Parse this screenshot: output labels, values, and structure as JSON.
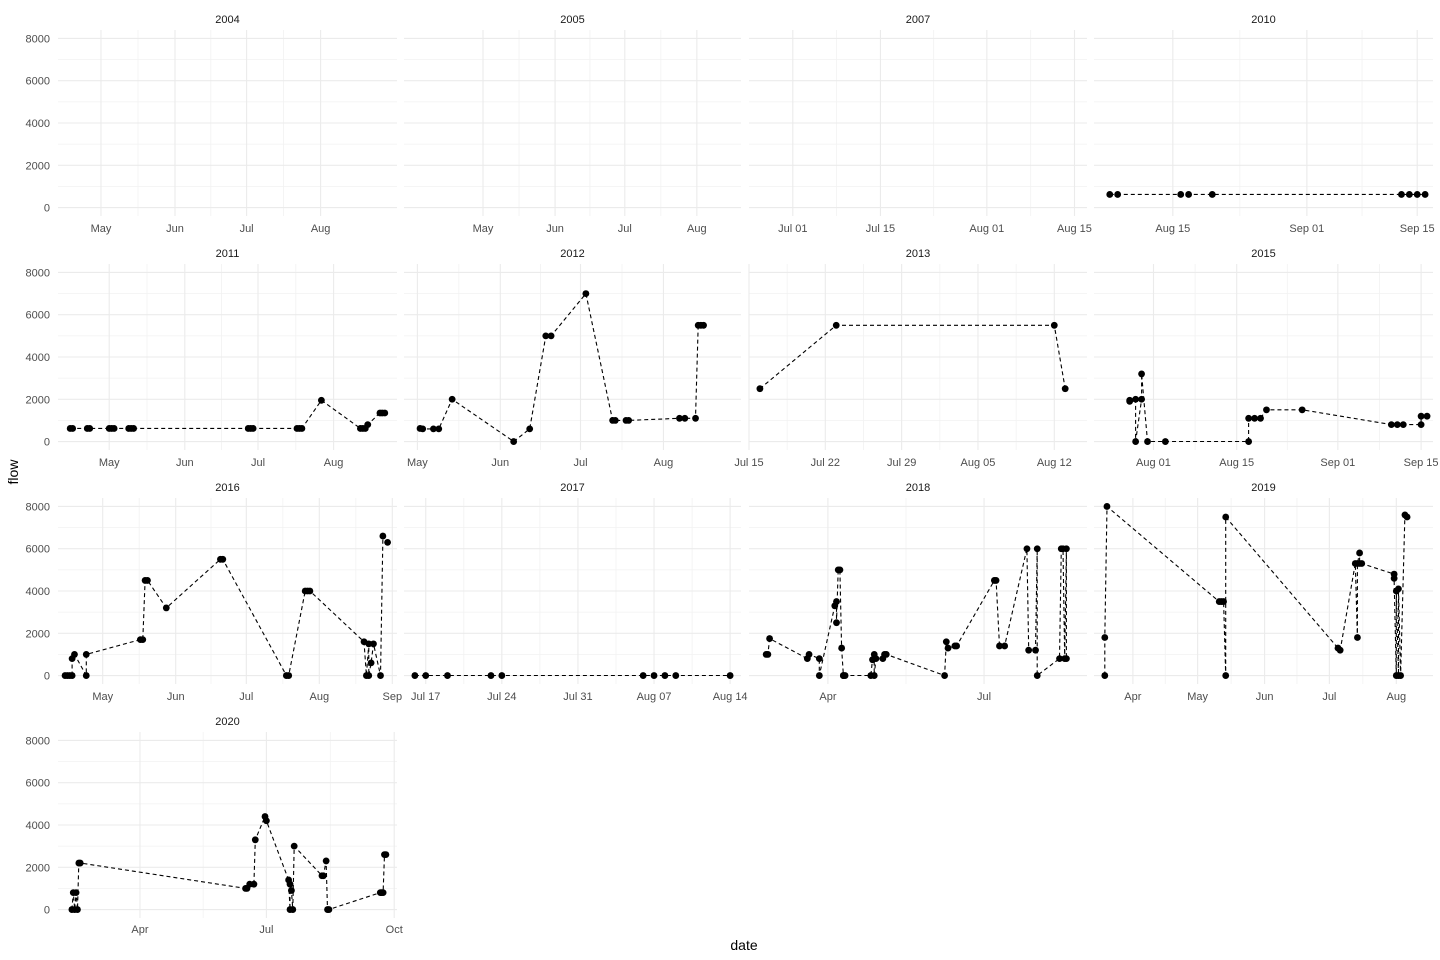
{
  "chart_data": {
    "type": "line",
    "xlabel": "date",
    "ylabel": "flow",
    "ylim": [
      -400,
      8400
    ],
    "y_ticks": [
      0,
      2000,
      4000,
      6000,
      8000
    ],
    "y_tick_labels": [
      "0",
      "2000",
      "4000",
      "6000",
      "8000"
    ],
    "grid": true,
    "line_style": "dashed",
    "marker": "point",
    "panels": [
      {
        "year": "2004",
        "xlim": [
          "2004-04-13",
          "2004-09-02"
        ],
        "x_ticks": [
          "2004-05-01",
          "2004-06-01",
          "2004-07-01",
          "2004-08-01"
        ],
        "x_tick_labels": [
          "May",
          "Jun",
          "Jul",
          "Aug"
        ],
        "x": [],
        "y": []
      },
      {
        "year": "2005",
        "xlim": [
          "2005-03-28",
          "2005-08-20"
        ],
        "x_ticks": [
          "2005-05-01",
          "2005-06-01",
          "2005-07-01",
          "2005-08-01"
        ],
        "x_tick_labels": [
          "May",
          "Jun",
          "Jul",
          "Aug"
        ],
        "x": [],
        "y": []
      },
      {
        "year": "2007",
        "xlim": [
          "2007-06-24",
          "2007-08-17"
        ],
        "x_ticks": [
          "2007-07-01",
          "2007-07-15",
          "2007-08-01",
          "2007-08-15"
        ],
        "x_tick_labels": [
          "Jul 01",
          "Jul 15",
          "Aug 01",
          "Aug 15"
        ],
        "x": [],
        "y": []
      },
      {
        "year": "2010",
        "xlim": [
          "2010-08-05",
          "2010-09-17"
        ],
        "x_ticks": [
          "2010-08-15",
          "2010-09-01",
          "2010-09-15"
        ],
        "x_tick_labels": [
          "Aug 15",
          "Sep 01",
          "Sep 15"
        ],
        "x": [
          "2010-08-07",
          "2010-08-08",
          "2010-08-16",
          "2010-08-17",
          "2010-08-20",
          "2010-09-13",
          "2010-09-14",
          "2010-09-15",
          "2010-09-16"
        ],
        "y": [
          620,
          620,
          620,
          620,
          620,
          620,
          620,
          620,
          620
        ]
      },
      {
        "year": "2011",
        "xlim": [
          "2011-04-10",
          "2011-08-27"
        ],
        "x_ticks": [
          "2011-05-01",
          "2011-06-01",
          "2011-07-01",
          "2011-08-01"
        ],
        "x_tick_labels": [
          "May",
          "Jun",
          "Jul",
          "Aug"
        ],
        "x": [
          "2011-04-15",
          "2011-04-16",
          "2011-04-22",
          "2011-04-23",
          "2011-05-01",
          "2011-05-02",
          "2011-05-03",
          "2011-05-09",
          "2011-05-10",
          "2011-05-11",
          "2011-06-27",
          "2011-06-28",
          "2011-06-29",
          "2011-07-17",
          "2011-07-18",
          "2011-07-19",
          "2011-07-27",
          "2011-08-12",
          "2011-08-13",
          "2011-08-14",
          "2011-08-15",
          "2011-08-20",
          "2011-08-21",
          "2011-08-22"
        ],
        "y": [
          620,
          620,
          620,
          620,
          620,
          620,
          620,
          620,
          620,
          620,
          620,
          620,
          620,
          620,
          620,
          620,
          1950,
          620,
          620,
          620,
          800,
          1350,
          1350,
          1350
        ]
      },
      {
        "year": "2012",
        "xlim": [
          "2012-04-26",
          "2012-08-30"
        ],
        "x_ticks": [
          "2012-05-01",
          "2012-06-01",
          "2012-07-01",
          "2012-08-01"
        ],
        "x_tick_labels": [
          "May",
          "Jun",
          "Jul",
          "Aug"
        ],
        "x": [
          "2012-05-02",
          "2012-05-03",
          "2012-05-07",
          "2012-05-09",
          "2012-05-14",
          "2012-06-06",
          "2012-06-12",
          "2012-06-18",
          "2012-06-20",
          "2012-07-03",
          "2012-07-13",
          "2012-07-14",
          "2012-07-18",
          "2012-07-19",
          "2012-08-07",
          "2012-08-09",
          "2012-08-13",
          "2012-08-14",
          "2012-08-15",
          "2012-08-16"
        ],
        "y": [
          620,
          600,
          600,
          600,
          2000,
          0,
          600,
          5000,
          5000,
          7000,
          1000,
          1000,
          1000,
          1000,
          1100,
          1100,
          1100,
          5500,
          5500,
          5500
        ]
      },
      {
        "year": "2013",
        "xlim": [
          "2013-07-15",
          "2013-08-15"
        ],
        "x_ticks": [
          "2013-07-15",
          "2013-07-22",
          "2013-07-29",
          "2013-08-05",
          "2013-08-12"
        ],
        "x_tick_labels": [
          "Jul 15",
          "Jul 22",
          "Jul 29",
          "Aug 05",
          "Aug 12"
        ],
        "x": [
          "2013-07-16",
          "2013-07-23",
          "2013-08-12",
          "2013-08-13"
        ],
        "y": [
          2500,
          5500,
          5500,
          2500
        ]
      },
      {
        "year": "2015",
        "xlim": [
          "2015-07-22",
          "2015-09-17"
        ],
        "x_ticks": [
          "2015-08-01",
          "2015-08-15",
          "2015-09-01",
          "2015-09-15"
        ],
        "x_tick_labels": [
          "Aug 01",
          "Aug 15",
          "Sep 01",
          "Sep 15"
        ],
        "x": [
          "2015-07-28",
          "2015-07-28",
          "2015-07-29",
          "2015-07-29",
          "2015-07-30",
          "2015-07-30",
          "2015-07-31",
          "2015-08-03",
          "2015-08-17",
          "2015-08-17",
          "2015-08-18",
          "2015-08-19",
          "2015-08-20",
          "2015-08-26",
          "2015-09-10",
          "2015-09-11",
          "2015-09-12",
          "2015-09-15",
          "2015-09-15",
          "2015-09-16"
        ],
        "y": [
          1950,
          1900,
          2000,
          0,
          2000,
          3200,
          0,
          0,
          0,
          1100,
          1100,
          1100,
          1500,
          1500,
          800,
          800,
          800,
          800,
          1200,
          1200
        ]
      },
      {
        "year": "2016",
        "xlim": [
          "2016-04-12",
          "2016-09-03"
        ],
        "x_ticks": [
          "2016-05-01",
          "2016-06-01",
          "2016-07-01",
          "2016-08-01",
          "2016-09-01"
        ],
        "x_tick_labels": [
          "May",
          "Jun",
          "Jul",
          "Aug",
          "Sep"
        ],
        "x": [
          "2016-04-15",
          "2016-04-16",
          "2016-04-17",
          "2016-04-18",
          "2016-04-18",
          "2016-04-19",
          "2016-04-24",
          "2016-04-24",
          "2016-05-17",
          "2016-05-18",
          "2016-05-19",
          "2016-05-20",
          "2016-05-28",
          "2016-06-20",
          "2016-06-21",
          "2016-07-18",
          "2016-07-19",
          "2016-07-26",
          "2016-07-27",
          "2016-07-28",
          "2016-08-20",
          "2016-08-21",
          "2016-08-22",
          "2016-08-22",
          "2016-08-23",
          "2016-08-24",
          "2016-08-27",
          "2016-08-28",
          "2016-08-30"
        ],
        "y": [
          0,
          0,
          0,
          0,
          800,
          1000,
          0,
          1000,
          1700,
          1700,
          4500,
          4500,
          3200,
          5500,
          5500,
          0,
          0,
          4000,
          4000,
          4000,
          1600,
          0,
          1500,
          0,
          600,
          1500,
          0,
          6600,
          6300
        ]
      },
      {
        "year": "2017",
        "xlim": [
          "2017-07-15",
          "2017-08-15"
        ],
        "x_ticks": [
          "2017-07-17",
          "2017-07-24",
          "2017-07-31",
          "2017-08-07",
          "2017-08-14"
        ],
        "x_tick_labels": [
          "Jul 17",
          "Jul 24",
          "Jul 31",
          "Aug 07",
          "Aug 14"
        ],
        "x": [
          "2017-07-16",
          "2017-07-17",
          "2017-07-19",
          "2017-07-23",
          "2017-07-24",
          "2017-08-06",
          "2017-08-07",
          "2017-08-08",
          "2017-08-09",
          "2017-08-14"
        ],
        "y": [
          0,
          0,
          0,
          0,
          0,
          0,
          0,
          0,
          0,
          0
        ]
      },
      {
        "year": "2018",
        "xlim": [
          "2018-02-14",
          "2018-08-30"
        ],
        "x_ticks": [
          "2018-04-01",
          "2018-07-01"
        ],
        "x_tick_labels": [
          "Apr",
          "Jul"
        ],
        "x": [
          "2018-02-24",
          "2018-02-25",
          "2018-02-26",
          "2018-03-20",
          "2018-03-21",
          "2018-03-27",
          "2018-03-27",
          "2018-04-05",
          "2018-04-06",
          "2018-04-06",
          "2018-04-07",
          "2018-04-08",
          "2018-04-09",
          "2018-04-10",
          "2018-04-10",
          "2018-04-11",
          "2018-04-26",
          "2018-04-27",
          "2018-04-28",
          "2018-04-28",
          "2018-04-29",
          "2018-05-03",
          "2018-05-04",
          "2018-05-05",
          "2018-06-08",
          "2018-06-09",
          "2018-06-10",
          "2018-06-14",
          "2018-06-15",
          "2018-07-07",
          "2018-07-08",
          "2018-07-10",
          "2018-07-13",
          "2018-07-26",
          "2018-07-27",
          "2018-07-31",
          "2018-08-01",
          "2018-08-01",
          "2018-08-14",
          "2018-08-15",
          "2018-08-16",
          "2018-08-17",
          "2018-08-18",
          "2018-08-18"
        ],
        "y": [
          1000,
          1000,
          1750,
          800,
          1000,
          800,
          0,
          3300,
          3500,
          2500,
          5000,
          5000,
          1300,
          0,
          0,
          0,
          0,
          750,
          1000,
          0,
          800,
          800,
          1000,
          1000,
          0,
          1600,
          1300,
          1400,
          1400,
          4500,
          4500,
          1400,
          1400,
          6000,
          1200,
          1200,
          6000,
          0,
          800,
          6000,
          6000,
          800,
          6000,
          800
        ]
      },
      {
        "year": "2019",
        "xlim": [
          "2019-03-14",
          "2019-08-18"
        ],
        "x_ticks": [
          "2019-04-01",
          "2019-05-01",
          "2019-06-01",
          "2019-07-01",
          "2019-08-01"
        ],
        "x_tick_labels": [
          "Apr",
          "May",
          "Jun",
          "Jul",
          "Aug"
        ],
        "x": [
          "2019-03-19",
          "2019-03-19",
          "2019-03-20",
          "2019-05-11",
          "2019-05-12",
          "2019-05-13",
          "2019-05-14",
          "2019-05-14",
          "2019-07-05",
          "2019-07-06",
          "2019-07-13",
          "2019-07-14",
          "2019-07-14",
          "2019-07-15",
          "2019-07-15",
          "2019-07-16",
          "2019-07-31",
          "2019-07-31",
          "2019-08-01",
          "2019-08-01",
          "2019-08-02",
          "2019-08-02",
          "2019-08-03",
          "2019-08-05",
          "2019-08-06"
        ],
        "y": [
          0,
          1800,
          8000,
          3500,
          3500,
          3500,
          0,
          7500,
          1300,
          1200,
          5300,
          1800,
          5300,
          5800,
          5300,
          5300,
          4800,
          4600,
          0,
          4000,
          0,
          4100,
          0,
          7600,
          7500
        ]
      },
      {
        "year": "2020",
        "xlim": [
          "2020-02-02",
          "2020-10-03"
        ],
        "x_ticks": [
          "2020-04-01",
          "2020-07-01",
          "2020-10-01"
        ],
        "x_tick_labels": [
          "Apr",
          "Jul",
          "Oct"
        ],
        "x": [
          "2020-02-12",
          "2020-02-13",
          "2020-02-14",
          "2020-02-15",
          "2020-02-16",
          "2020-02-17",
          "2020-02-18",
          "2020-06-16",
          "2020-06-17",
          "2020-06-19",
          "2020-06-22",
          "2020-06-23",
          "2020-06-30",
          "2020-07-01",
          "2020-07-17",
          "2020-07-18",
          "2020-07-18",
          "2020-07-19",
          "2020-07-20",
          "2020-07-21",
          "2020-08-10",
          "2020-08-11",
          "2020-08-13",
          "2020-08-14",
          "2020-08-15",
          "2020-09-21",
          "2020-09-22",
          "2020-09-23",
          "2020-09-24",
          "2020-09-25"
        ],
        "y": [
          0,
          800,
          0,
          800,
          0,
          2200,
          2200,
          1000,
          1000,
          1200,
          1200,
          3300,
          4400,
          4200,
          1400,
          0,
          1200,
          900,
          0,
          3000,
          1600,
          1600,
          2300,
          0,
          0,
          800,
          800,
          800,
          2600,
          2600
        ]
      }
    ]
  }
}
